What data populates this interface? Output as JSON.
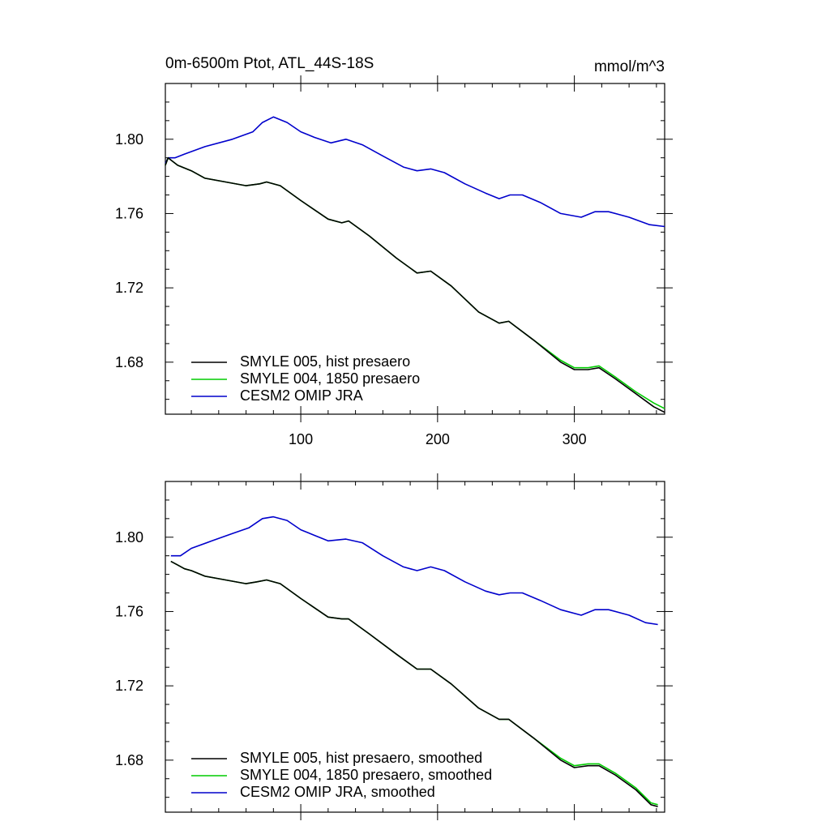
{
  "chart_data": [
    {
      "type": "line",
      "title": "0m-6500m Ptot, ATL_44S-18S",
      "units": "mmol/m^3",
      "xlim": [
        1,
        366
      ],
      "ylim": [
        1.652,
        1.83
      ],
      "x_ticks": [
        100,
        200,
        300
      ],
      "y_ticks": [
        1.68,
        1.72,
        1.76,
        1.8
      ],
      "x_tick_labels": [
        "100",
        "200",
        "300"
      ],
      "y_tick_labels": [
        "1.68",
        "1.72",
        "1.76",
        "1.80"
      ],
      "legend_position": "bottom-left",
      "series": [
        {
          "name": "SMYLE 005, hist presaero",
          "color": "#000000",
          "points": [
            [
              1,
              1.786
            ],
            [
              3,
              1.79
            ],
            [
              10,
              1.786
            ],
            [
              20,
              1.783
            ],
            [
              30,
              1.779
            ],
            [
              45,
              1.777
            ],
            [
              60,
              1.775
            ],
            [
              70,
              1.776
            ],
            [
              75,
              1.777
            ],
            [
              85,
              1.775
            ],
            [
              100,
              1.767
            ],
            [
              120,
              1.757
            ],
            [
              130,
              1.755
            ],
            [
              135,
              1.756
            ],
            [
              150,
              1.748
            ],
            [
              170,
              1.736
            ],
            [
              185,
              1.728
            ],
            [
              195,
              1.729
            ],
            [
              210,
              1.721
            ],
            [
              230,
              1.707
            ],
            [
              245,
              1.701
            ],
            [
              252,
              1.702
            ],
            [
              270,
              1.692
            ],
            [
              290,
              1.68
            ],
            [
              300,
              1.676
            ],
            [
              310,
              1.676
            ],
            [
              318,
              1.677
            ],
            [
              330,
              1.671
            ],
            [
              345,
              1.663
            ],
            [
              358,
              1.656
            ],
            [
              366,
              1.653
            ]
          ]
        },
        {
          "name": "SMYLE 004, 1850 presaero",
          "color": "#00cc00",
          "points": [
            [
              1,
              1.786
            ],
            [
              3,
              1.79
            ],
            [
              10,
              1.786
            ],
            [
              20,
              1.783
            ],
            [
              30,
              1.779
            ],
            [
              45,
              1.777
            ],
            [
              60,
              1.775
            ],
            [
              70,
              1.776
            ],
            [
              75,
              1.777
            ],
            [
              85,
              1.775
            ],
            [
              100,
              1.767
            ],
            [
              120,
              1.757
            ],
            [
              130,
              1.755
            ],
            [
              135,
              1.756
            ],
            [
              150,
              1.748
            ],
            [
              170,
              1.736
            ],
            [
              185,
              1.728
            ],
            [
              195,
              1.729
            ],
            [
              210,
              1.721
            ],
            [
              230,
              1.707
            ],
            [
              245,
              1.701
            ],
            [
              252,
              1.702
            ],
            [
              270,
              1.692
            ],
            [
              290,
              1.681
            ],
            [
              300,
              1.677
            ],
            [
              310,
              1.677
            ],
            [
              318,
              1.678
            ],
            [
              330,
              1.672
            ],
            [
              345,
              1.664
            ],
            [
              358,
              1.658
            ],
            [
              366,
              1.655
            ]
          ]
        },
        {
          "name": "CESM2 OMIP JRA",
          "color": "#0000cc",
          "points": [
            [
              1,
              1.787
            ],
            [
              3,
              1.79
            ],
            [
              8,
              1.79
            ],
            [
              15,
              1.792
            ],
            [
              30,
              1.796
            ],
            [
              50,
              1.8
            ],
            [
              65,
              1.804
            ],
            [
              72,
              1.809
            ],
            [
              80,
              1.812
            ],
            [
              90,
              1.809
            ],
            [
              100,
              1.804
            ],
            [
              110,
              1.801
            ],
            [
              122,
              1.798
            ],
            [
              133,
              1.8
            ],
            [
              145,
              1.797
            ],
            [
              160,
              1.791
            ],
            [
              175,
              1.785
            ],
            [
              185,
              1.783
            ],
            [
              195,
              1.784
            ],
            [
              205,
              1.782
            ],
            [
              220,
              1.776
            ],
            [
              235,
              1.771
            ],
            [
              245,
              1.768
            ],
            [
              253,
              1.77
            ],
            [
              262,
              1.77
            ],
            [
              275,
              1.766
            ],
            [
              290,
              1.76
            ],
            [
              305,
              1.758
            ],
            [
              315,
              1.761
            ],
            [
              325,
              1.761
            ],
            [
              340,
              1.758
            ],
            [
              355,
              1.754
            ],
            [
              366,
              1.753
            ]
          ]
        }
      ]
    },
    {
      "type": "line",
      "xlim": [
        1,
        366
      ],
      "ylim": [
        1.652,
        1.83
      ],
      "x_ticks": [
        100,
        200,
        300
      ],
      "y_ticks": [
        1.68,
        1.72,
        1.76,
        1.8
      ],
      "x_tick_labels": [],
      "y_tick_labels": [
        "1.68",
        "1.72",
        "1.76",
        "1.80"
      ],
      "legend_position": "bottom-left",
      "series": [
        {
          "name": "SMYLE 005, hist presaero, smoothed",
          "color": "#000000",
          "points": [
            [
              5,
              1.787
            ],
            [
              10,
              1.785
            ],
            [
              15,
              1.783
            ],
            [
              20,
              1.782
            ],
            [
              30,
              1.779
            ],
            [
              45,
              1.777
            ],
            [
              60,
              1.775
            ],
            [
              68,
              1.776
            ],
            [
              75,
              1.777
            ],
            [
              85,
              1.775
            ],
            [
              100,
              1.767
            ],
            [
              120,
              1.757
            ],
            [
              130,
              1.756
            ],
            [
              135,
              1.756
            ],
            [
              150,
              1.748
            ],
            [
              170,
              1.737
            ],
            [
              185,
              1.729
            ],
            [
              195,
              1.729
            ],
            [
              210,
              1.721
            ],
            [
              230,
              1.708
            ],
            [
              245,
              1.702
            ],
            [
              252,
              1.702
            ],
            [
              270,
              1.692
            ],
            [
              290,
              1.68
            ],
            [
              300,
              1.676
            ],
            [
              310,
              1.677
            ],
            [
              318,
              1.677
            ],
            [
              330,
              1.672
            ],
            [
              345,
              1.664
            ],
            [
              356,
              1.656
            ],
            [
              361,
              1.655
            ]
          ]
        },
        {
          "name": "SMYLE 004, 1850 presaero, smoothed",
          "color": "#00cc00",
          "points": [
            [
              5,
              1.787
            ],
            [
              10,
              1.785
            ],
            [
              15,
              1.783
            ],
            [
              20,
              1.782
            ],
            [
              30,
              1.779
            ],
            [
              45,
              1.777
            ],
            [
              60,
              1.775
            ],
            [
              68,
              1.776
            ],
            [
              75,
              1.777
            ],
            [
              85,
              1.775
            ],
            [
              100,
              1.767
            ],
            [
              120,
              1.757
            ],
            [
              130,
              1.756
            ],
            [
              135,
              1.756
            ],
            [
              150,
              1.748
            ],
            [
              170,
              1.737
            ],
            [
              185,
              1.729
            ],
            [
              195,
              1.729
            ],
            [
              210,
              1.721
            ],
            [
              230,
              1.708
            ],
            [
              245,
              1.702
            ],
            [
              252,
              1.702
            ],
            [
              270,
              1.692
            ],
            [
              290,
              1.681
            ],
            [
              300,
              1.677
            ],
            [
              310,
              1.678
            ],
            [
              318,
              1.678
            ],
            [
              330,
              1.673
            ],
            [
              345,
              1.665
            ],
            [
              356,
              1.657
            ],
            [
              361,
              1.656
            ]
          ]
        },
        {
          "name": "CESM2 OMIP JRA, smoothed",
          "color": "#0000cc",
          "points": [
            [
              5,
              1.79
            ],
            [
              12,
              1.79
            ],
            [
              20,
              1.794
            ],
            [
              35,
              1.798
            ],
            [
              50,
              1.802
            ],
            [
              62,
              1.805
            ],
            [
              72,
              1.81
            ],
            [
              80,
              1.811
            ],
            [
              90,
              1.809
            ],
            [
              100,
              1.804
            ],
            [
              110,
              1.801
            ],
            [
              120,
              1.798
            ],
            [
              133,
              1.799
            ],
            [
              145,
              1.797
            ],
            [
              160,
              1.79
            ],
            [
              175,
              1.784
            ],
            [
              185,
              1.782
            ],
            [
              195,
              1.784
            ],
            [
              205,
              1.782
            ],
            [
              220,
              1.776
            ],
            [
              235,
              1.771
            ],
            [
              245,
              1.769
            ],
            [
              253,
              1.77
            ],
            [
              262,
              1.77
            ],
            [
              275,
              1.766
            ],
            [
              290,
              1.761
            ],
            [
              305,
              1.758
            ],
            [
              315,
              1.761
            ],
            [
              325,
              1.761
            ],
            [
              340,
              1.758
            ],
            [
              352,
              1.754
            ],
            [
              361,
              1.753
            ]
          ]
        }
      ]
    }
  ]
}
